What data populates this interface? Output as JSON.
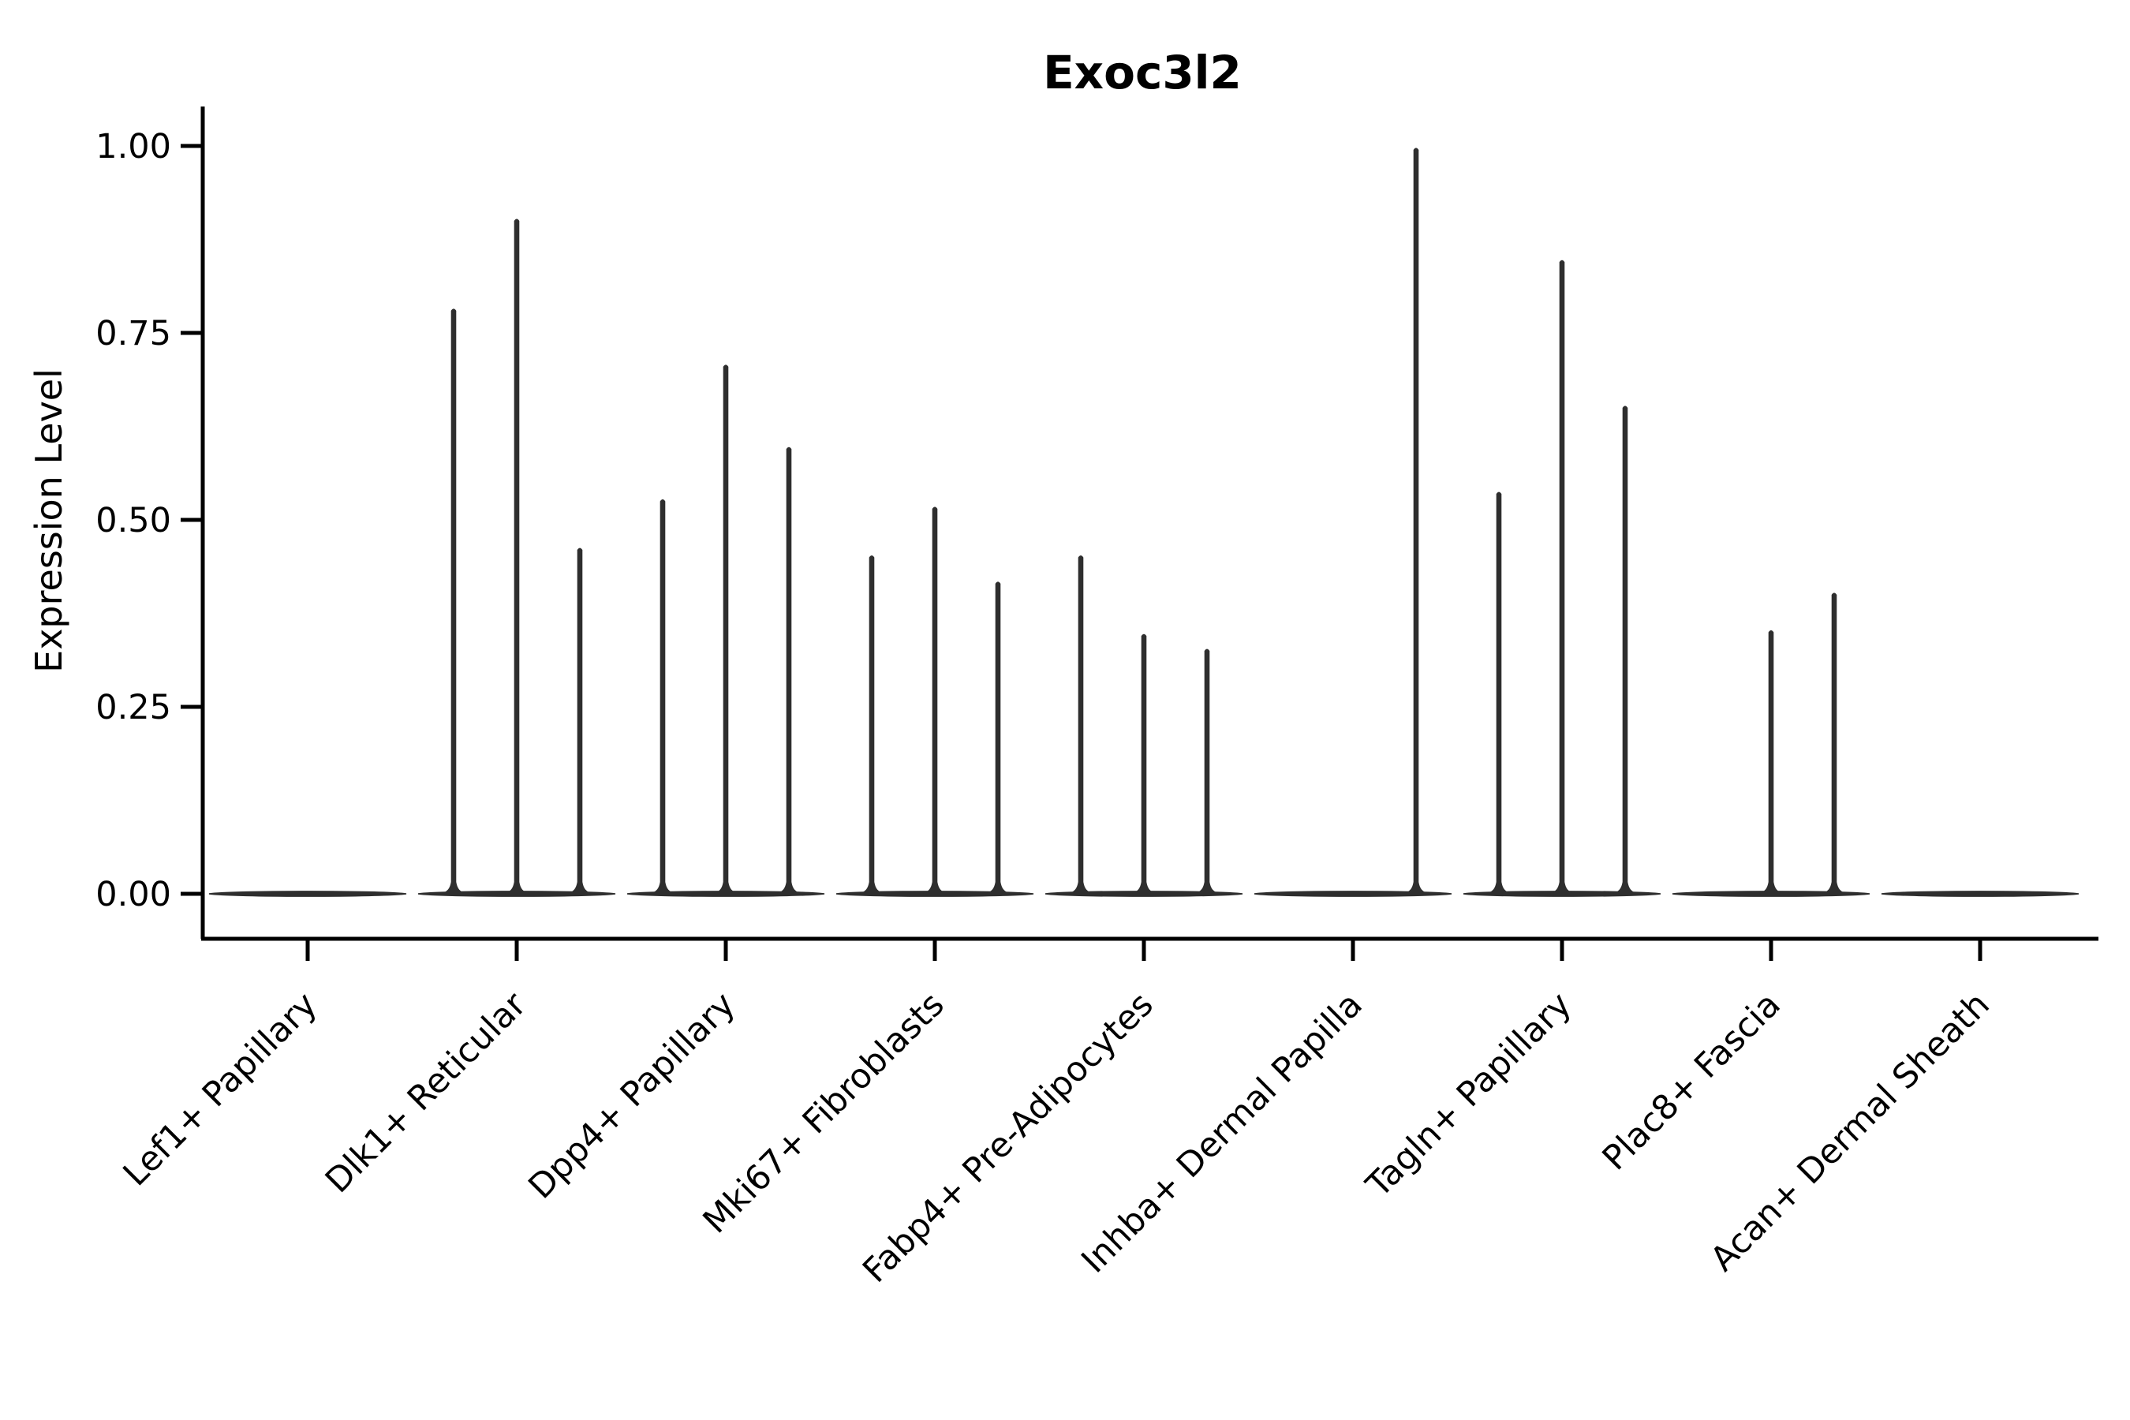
{
  "figure": {
    "title": "Exoc3l2",
    "ylabel": "Expression Level",
    "background_color": "#ffffff",
    "axis_color": "#000000",
    "violin_color": "#2e2e2e"
  },
  "chart_data": {
    "type": "violin",
    "title": "Exoc3l2",
    "xlabel": "",
    "ylabel": "Expression Level",
    "ylim": [
      0.0,
      1.05
    ],
    "yticks": [
      "0.00",
      "0.25",
      "0.50",
      "0.75",
      "1.00"
    ],
    "ytick_values": [
      0.0,
      0.25,
      0.5,
      0.75,
      1.0
    ],
    "grid": false,
    "legend": "none",
    "x_tick_rotation_deg": 45,
    "description": "Each category shows a flat near-zero density baseline; thin vertical spikes mark sub-violins whose maximum expression reaches the listed value. Null means that sub-violin slot has no spike (all cells at 0).",
    "categories": [
      {
        "label": "Lef1+ Papillary",
        "spikes": [
          null,
          null,
          null
        ]
      },
      {
        "label": "Dlk1+ Reticular",
        "spikes": [
          0.785,
          0.905,
          0.465
        ]
      },
      {
        "label": "Dpp4+ Papillary",
        "spikes": [
          0.53,
          0.71,
          0.6
        ]
      },
      {
        "label": "Mki67+ Fibroblasts",
        "spikes": [
          0.455,
          0.52,
          0.42
        ]
      },
      {
        "label": "Fabp4+ Pre-Adipocytes",
        "spikes": [
          0.455,
          0.35,
          0.33
        ]
      },
      {
        "label": "Inhba+ Dermal Papilla",
        "spikes": [
          null,
          null,
          1.0
        ]
      },
      {
        "label": "Tagln+ Papillary",
        "spikes": [
          0.54,
          0.85,
          0.655
        ]
      },
      {
        "label": "Plac8+ Fascia",
        "spikes": [
          null,
          0.355,
          0.405
        ]
      },
      {
        "label": "Acan+ Dermal Sheath",
        "spikes": [
          null,
          null,
          null
        ]
      }
    ]
  }
}
